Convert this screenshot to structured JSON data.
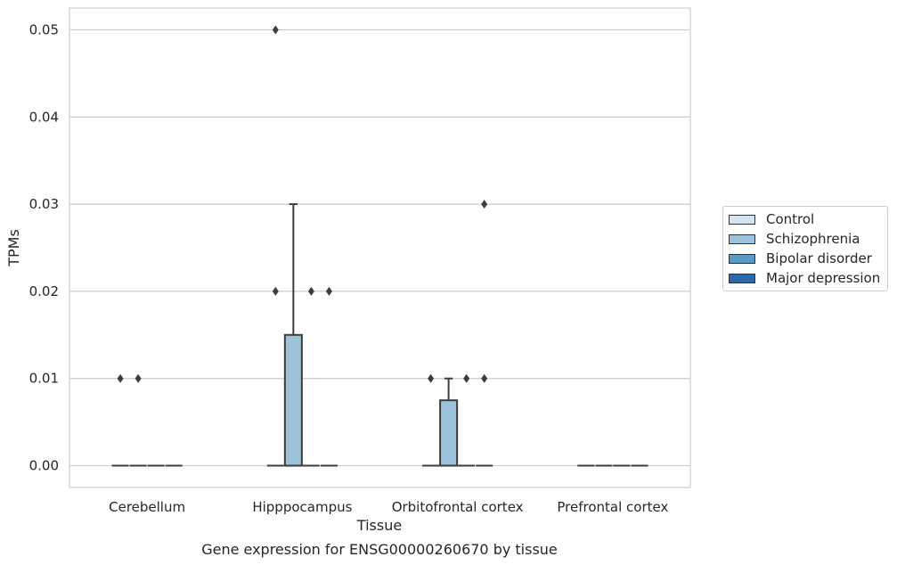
{
  "chart_data": {
    "type": "boxplot",
    "title": "Gene expression for ENSG00000260670 by tissue",
    "xlabel": "Tissue",
    "ylabel": "TPMs",
    "ylim": [
      -0.0025,
      0.0525
    ],
    "yticks": [
      0.0,
      0.01,
      0.02,
      0.03,
      0.04,
      0.05
    ],
    "ytick_labels": [
      "0.00",
      "0.01",
      "0.02",
      "0.03",
      "0.04",
      "0.05"
    ],
    "categories": [
      "Cerebellum",
      "Hipppocampus",
      "Orbitofrontal cortex",
      "Prefrontal cortex"
    ],
    "grid": "horizontal",
    "legend_position": "right",
    "series": [
      {
        "name": "Control",
        "color": "#d6e4f1",
        "boxes": [
          {
            "q1": 0,
            "median": 0,
            "q3": 0,
            "whisker_low": 0,
            "whisker_high": 0,
            "outliers": [
              0.01
            ]
          },
          {
            "q1": 0,
            "median": 0,
            "q3": 0,
            "whisker_low": 0,
            "whisker_high": 0,
            "outliers": [
              0.02,
              0.05
            ]
          },
          {
            "q1": 0,
            "median": 0,
            "q3": 0,
            "whisker_low": 0,
            "whisker_high": 0,
            "outliers": [
              0.01
            ]
          },
          {
            "q1": 0,
            "median": 0,
            "q3": 0,
            "whisker_low": 0,
            "whisker_high": 0,
            "outliers": []
          }
        ]
      },
      {
        "name": "Schizophrenia",
        "color": "#9dc3db",
        "boxes": [
          {
            "q1": 0,
            "median": 0,
            "q3": 0,
            "whisker_low": 0,
            "whisker_high": 0,
            "outliers": [
              0.01
            ]
          },
          {
            "q1": 0,
            "median": 0,
            "q3": 0.015,
            "whisker_low": 0,
            "whisker_high": 0.03,
            "outliers": []
          },
          {
            "q1": 0,
            "median": 0,
            "q3": 0.0075,
            "whisker_low": 0,
            "whisker_high": 0.01,
            "outliers": []
          },
          {
            "q1": 0,
            "median": 0,
            "q3": 0,
            "whisker_low": 0,
            "whisker_high": 0,
            "outliers": []
          }
        ]
      },
      {
        "name": "Bipolar disorder",
        "color": "#5b9ac4",
        "boxes": [
          {
            "q1": 0,
            "median": 0,
            "q3": 0,
            "whisker_low": 0,
            "whisker_high": 0,
            "outliers": []
          },
          {
            "q1": 0,
            "median": 0,
            "q3": 0,
            "whisker_low": 0,
            "whisker_high": 0,
            "outliers": [
              0.02
            ]
          },
          {
            "q1": 0,
            "median": 0,
            "q3": 0,
            "whisker_low": 0,
            "whisker_high": 0,
            "outliers": [
              0.01
            ]
          },
          {
            "q1": 0,
            "median": 0,
            "q3": 0,
            "whisker_low": 0,
            "whisker_high": 0,
            "outliers": []
          }
        ]
      },
      {
        "name": "Major depression",
        "color": "#2b6aa6",
        "boxes": [
          {
            "q1": 0,
            "median": 0,
            "q3": 0,
            "whisker_low": 0,
            "whisker_high": 0,
            "outliers": []
          },
          {
            "q1": 0,
            "median": 0,
            "q3": 0,
            "whisker_low": 0,
            "whisker_high": 0,
            "outliers": [
              0.02
            ]
          },
          {
            "q1": 0,
            "median": 0,
            "q3": 0,
            "whisker_low": 0,
            "whisker_high": 0,
            "outliers": [
              0.01,
              0.03
            ]
          },
          {
            "q1": 0,
            "median": 0,
            "q3": 0,
            "whisker_low": 0,
            "whisker_high": 0,
            "outliers": []
          }
        ]
      }
    ]
  }
}
